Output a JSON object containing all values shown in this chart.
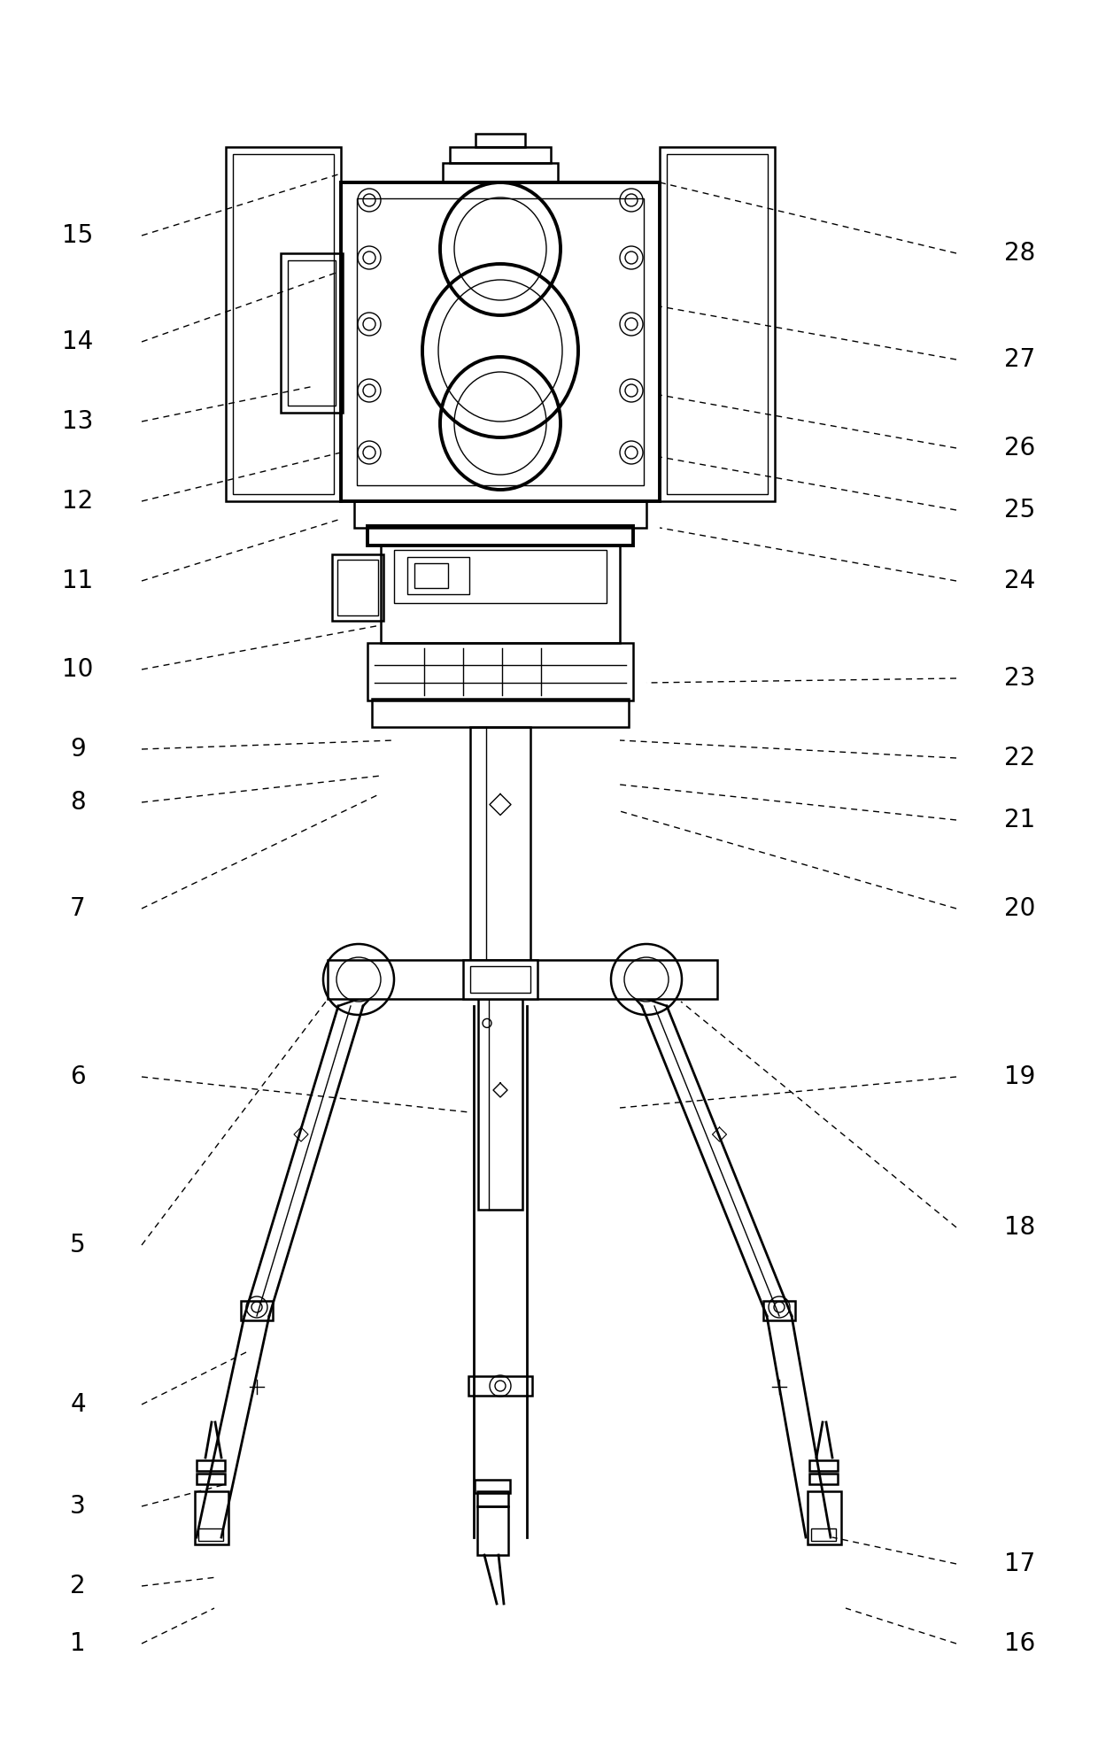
{
  "bg_color": "#ffffff",
  "line_color": "#000000",
  "fig_width": 12.4,
  "fig_height": 19.66,
  "label_fontsize": 20
}
